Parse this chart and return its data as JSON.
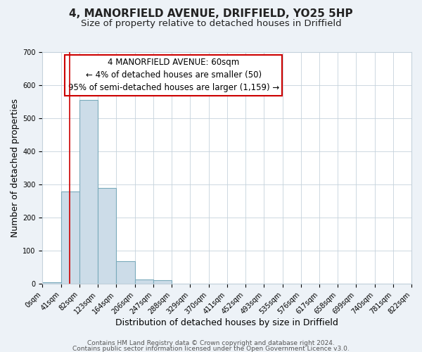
{
  "title": "4, MANORFIELD AVENUE, DRIFFIELD, YO25 5HP",
  "subtitle": "Size of property relative to detached houses in Driffield",
  "xlabel": "Distribution of detached houses by size in Driffield",
  "ylabel": "Number of detached properties",
  "bin_edges": [
    0,
    41,
    82,
    123,
    164,
    206,
    247,
    288,
    329,
    370,
    411,
    452,
    493,
    535,
    576,
    617,
    658,
    699,
    740,
    781,
    822
  ],
  "bar_heights": [
    5,
    280,
    555,
    290,
    68,
    13,
    10,
    0,
    0,
    0,
    0,
    0,
    0,
    0,
    0,
    0,
    0,
    0,
    0,
    0
  ],
  "bar_color": "#ccdce8",
  "bar_edge_color": "#7aaabb",
  "property_line_x": 60,
  "property_line_color": "#cc0000",
  "ylim": [
    0,
    700
  ],
  "yticks": [
    0,
    100,
    200,
    300,
    400,
    500,
    600,
    700
  ],
  "annotation_line1": "4 MANORFIELD AVENUE: 60sqm",
  "annotation_line2": "← 4% of detached houses are smaller (50)",
  "annotation_line3": "95% of semi-detached houses are larger (1,159) →",
  "annotation_box_color": "#cc0000",
  "annotation_box_facecolor": "#ffffff",
  "footer_line1": "Contains HM Land Registry data © Crown copyright and database right 2024.",
  "footer_line2": "Contains public sector information licensed under the Open Government Licence v3.0.",
  "bg_color": "#edf2f7",
  "plot_bg_color": "#ffffff",
  "grid_color": "#c5d2dc",
  "title_fontsize": 11,
  "subtitle_fontsize": 9.5,
  "label_fontsize": 9,
  "tick_fontsize": 7,
  "annotation_fontsize": 8.5,
  "footer_fontsize": 6.5
}
